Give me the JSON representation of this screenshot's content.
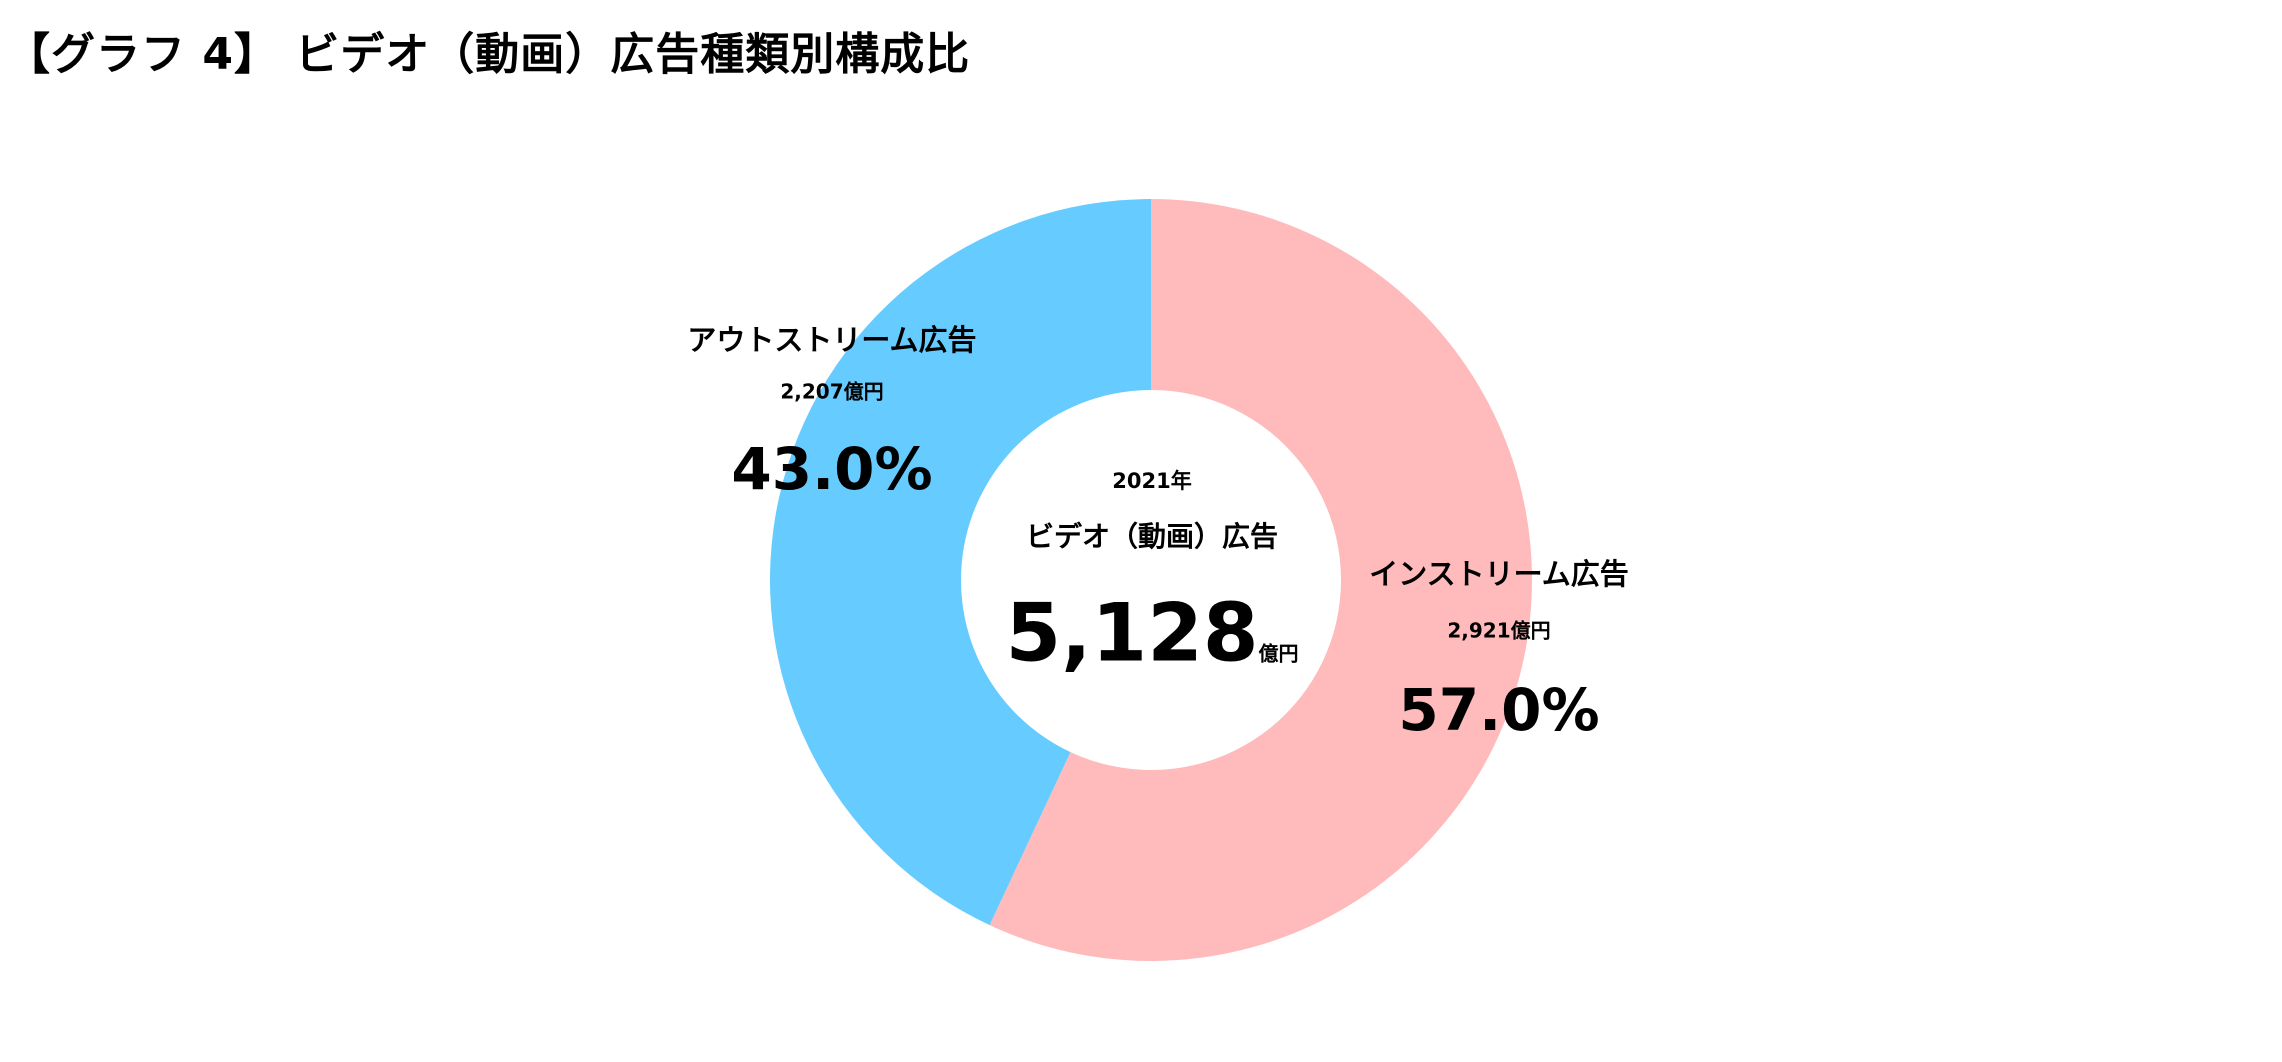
{
  "title": "【グラフ 4】 ビデオ（動画）広告種類別構成比",
  "chart_data": {
    "type": "pie",
    "donut": true,
    "title": "【グラフ 4】 ビデオ（動画）広告種類別構成比",
    "center": {
      "year": "2021年",
      "label": "ビデオ（動画）広告",
      "total": "5,128",
      "unit": "億円"
    },
    "slices": [
      {
        "name": "インストリーム広告",
        "amount": "2,921億円",
        "value": 2921,
        "percent": 57.0,
        "percent_label": "57.0%",
        "color": "#FFBBBB"
      },
      {
        "name": "アウトストリーム広告",
        "amount": "2,207億円",
        "value": 2207,
        "percent": 43.0,
        "percent_label": "43.0%",
        "color": "#66CCFF"
      }
    ]
  }
}
